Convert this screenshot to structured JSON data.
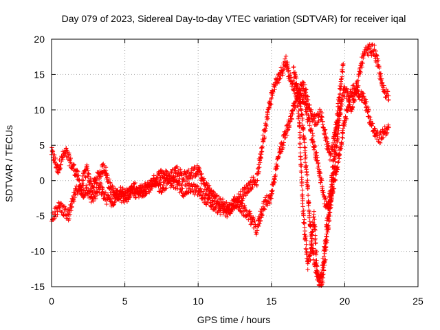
{
  "chart_data": {
    "type": "scatter",
    "title": "Day 079 of 2023, Sidereal Day-to-day VTEC variation (SDTVAR) for receiver iqal",
    "xlabel": "GPS time / hours",
    "ylabel": "SDTVAR / TECUs",
    "xlim": [
      0,
      25
    ],
    "ylim": [
      -15,
      20
    ],
    "xticks": [
      0,
      5,
      10,
      15,
      20,
      25
    ],
    "yticks": [
      -15,
      -10,
      -5,
      0,
      5,
      10,
      15,
      20
    ],
    "xtick_labels": [
      "0",
      "5",
      "10",
      "15",
      "20",
      "25"
    ],
    "ytick_labels": [
      "-15",
      "-10",
      "-5",
      "0",
      "5",
      "10",
      "15",
      "20"
    ],
    "grid": true,
    "marker": "+",
    "color": "#ff0000",
    "series": [
      {
        "name": "iqal",
        "tracks": [
          {
            "x": [
              0.0,
              0.2,
              0.4,
              0.6,
              0.8,
              1.0,
              1.2,
              1.4,
              1.6,
              1.8,
              2.0,
              2.2,
              2.4,
              2.6,
              2.8,
              3.0,
              3.3,
              3.6,
              4.0,
              4.4,
              4.8,
              5.2,
              5.6,
              6.0,
              6.5,
              7.0,
              7.5,
              8.0,
              8.5,
              9.0,
              9.5,
              10.0,
              10.3,
              10.6,
              11.0,
              11.4,
              11.8,
              12.2,
              12.6,
              13.0,
              13.4,
              13.8,
              14.0,
              14.3,
              14.6,
              14.9,
              15.2,
              15.5,
              15.8,
              16.0,
              16.2,
              16.4,
              16.6,
              16.8,
              17.0,
              17.2,
              17.4,
              17.6,
              17.8,
              18.0,
              18.2,
              18.4,
              18.6,
              18.8,
              19.0,
              19.2,
              19.4,
              19.6,
              19.8,
              20.0,
              20.2,
              20.4,
              20.6,
              20.8,
              21.0,
              21.2,
              21.4,
              21.6,
              21.8,
              22.0,
              22.2,
              22.4,
              22.6,
              22.8,
              23.0
            ],
            "y": [
              4.0,
              3.0,
              1.5,
              2.5,
              3.5,
              4.0,
              3.0,
              2.0,
              1.5,
              0.5,
              -1.0,
              0.5,
              1.5,
              0.0,
              -1.0,
              0.0,
              1.0,
              2.0,
              -1.0,
              -2.0,
              -1.5,
              -2.0,
              -1.0,
              -1.5,
              -1.0,
              0.0,
              1.0,
              0.5,
              1.5,
              0.5,
              1.0,
              1.5,
              0.0,
              -1.0,
              -2.0,
              -3.0,
              -3.5,
              -4.0,
              -3.0,
              -2.0,
              -1.0,
              0.0,
              0.0,
              4.0,
              8.0,
              11.0,
              13.5,
              14.5,
              16.0,
              17.0,
              15.0,
              14.0,
              13.0,
              12.5,
              13.0,
              13.5,
              12.0,
              10.0,
              9.0,
              8.5,
              9.0,
              9.5,
              7.0,
              5.0,
              3.5,
              5.0,
              7.5,
              9.0,
              11.0,
              13.0,
              12.0,
              10.0,
              11.5,
              13.0,
              15.0,
              17.0,
              18.0,
              18.5,
              18.5,
              18.5,
              17.0,
              15.0,
              13.0,
              12.5,
              12.0
            ]
          },
          {
            "x": [
              0.0,
              0.3,
              0.6,
              0.9,
              1.2,
              1.5,
              1.8,
              2.1,
              2.4,
              2.7,
              3.0,
              3.3,
              3.7,
              4.1,
              4.5,
              5.0,
              5.5,
              6.0,
              6.5,
              7.0,
              7.5,
              8.0,
              8.5,
              9.0,
              9.5,
              10.0,
              10.5,
              11.0,
              11.5,
              12.0,
              12.5,
              13.0,
              13.5,
              14.0,
              14.3,
              14.6,
              14.9,
              15.2,
              15.5,
              15.8,
              16.1,
              16.4,
              16.7,
              17.0,
              17.3,
              17.6,
              17.9,
              18.2,
              18.5,
              18.8,
              19.1,
              19.4,
              19.7,
              20.0,
              20.3,
              20.6,
              20.9,
              21.2,
              21.5,
              21.8,
              22.1,
              22.4,
              22.7,
              23.0
            ],
            "y": [
              -5.0,
              -4.5,
              -3.5,
              -4.5,
              -5.0,
              -2.5,
              -1.0,
              -2.0,
              -1.0,
              -2.5,
              -2.0,
              -1.0,
              -2.5,
              -3.0,
              -2.0,
              -2.5,
              -1.5,
              -2.0,
              -1.0,
              -0.5,
              -1.0,
              0.0,
              -0.5,
              -1.5,
              -1.0,
              -1.5,
              -2.5,
              -3.5,
              -4.0,
              -4.5,
              -3.0,
              -4.0,
              -5.0,
              -7.0,
              -4.5,
              -3.0,
              -2.5,
              0.0,
              3.5,
              5.5,
              7.5,
              9.5,
              11.5,
              12.5,
              11.0,
              8.0,
              5.0,
              2.0,
              -1.5,
              -4.0,
              -2.0,
              1.0,
              4.5,
              8.5,
              11.5,
              13.0,
              12.5,
              12.0,
              10.5,
              8.0,
              6.5,
              6.0,
              7.0,
              7.5
            ]
          },
          {
            "x": [
              16.5,
              16.7,
              16.9,
              17.1,
              17.3,
              17.5,
              17.7,
              17.9,
              18.1,
              18.3,
              18.5,
              18.7,
              18.9,
              19.1,
              19.3,
              19.5,
              19.7
            ],
            "y": [
              15.5,
              14.0,
              8.0,
              -2.0,
              -8.0,
              -12.0,
              -10.0,
              -5.0,
              -12.0,
              -14.5,
              -14.0,
              -10.0,
              -6.0,
              -2.0,
              2.0,
              6.0,
              10.0
            ]
          },
          {
            "x": [
              16.9,
              17.1,
              17.3,
              17.5,
              17.7,
              17.9,
              18.1,
              18.3,
              18.5,
              18.7,
              18.9,
              19.1,
              19.3,
              19.5,
              19.7,
              19.9
            ],
            "y": [
              12.0,
              9.0,
              4.0,
              -2.0,
              -8.0,
              -11.0,
              -13.5,
              -14.5,
              -12.0,
              -8.0,
              -4.0,
              0.0,
              4.5,
              9.0,
              13.0,
              16.5
            ]
          }
        ]
      }
    ]
  }
}
